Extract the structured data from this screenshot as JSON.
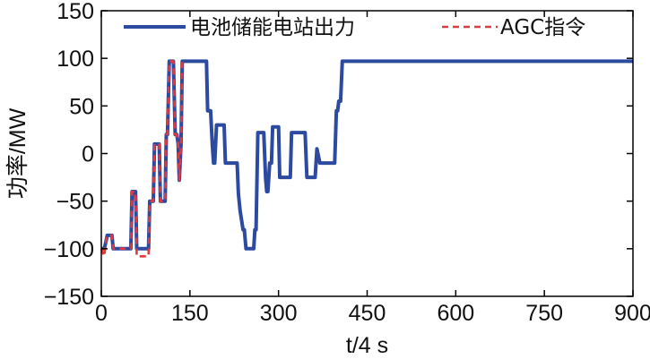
{
  "chart_data": {
    "type": "line",
    "xlabel": "t/4 s",
    "ylabel": "功率/MW",
    "xlim": [
      0,
      900
    ],
    "ylim": [
      -150,
      150
    ],
    "xticks": [
      0,
      150,
      300,
      450,
      600,
      750,
      900
    ],
    "yticks": [
      150,
      100,
      50,
      0,
      -50,
      -100,
      -150
    ],
    "grid": false,
    "legend_position": "top",
    "series": [
      {
        "name": "电池储能电站出力",
        "color": "#2b4aa0",
        "style": "solid",
        "x": [
          0,
          5,
          8,
          10,
          12,
          18,
          20,
          45,
          48,
          50,
          52,
          58,
          60,
          75,
          78,
          80,
          82,
          88,
          90,
          93,
          95,
          98,
          100,
          102,
          105,
          108,
          110,
          112,
          115,
          118,
          120,
          122,
          125,
          128,
          130,
          132,
          135,
          137,
          140,
          142,
          145,
          148,
          150,
          152,
          155,
          158,
          160,
          162,
          170,
          172,
          175,
          178,
          180,
          185,
          188,
          190,
          192,
          195,
          198,
          200,
          202,
          205,
          208,
          210,
          215,
          220,
          222,
          225,
          228,
          230,
          232,
          235,
          240,
          242,
          245,
          248,
          250,
          252,
          255,
          258,
          260,
          262,
          265,
          268,
          270,
          275,
          278,
          280,
          282,
          285,
          288,
          290,
          292,
          295,
          298,
          300,
          302,
          305,
          310,
          312,
          315,
          318,
          320,
          322,
          325,
          328,
          330,
          332,
          335,
          338,
          340,
          342,
          345,
          348,
          350,
          352,
          355,
          358,
          360,
          362,
          365,
          370,
          372,
          375,
          378,
          380,
          382,
          385,
          388,
          390,
          392,
          395,
          398,
          400,
          402,
          405,
          408,
          410,
          412,
          415,
          418,
          420,
          422,
          425,
          428,
          430,
          432,
          435,
          438,
          440,
          442,
          445,
          448,
          450,
          452,
          455,
          458,
          460,
          462,
          465,
          468,
          470,
          472,
          475,
          478,
          480,
          482,
          485,
          488,
          490,
          492,
          495,
          498,
          500,
          502,
          505,
          508,
          510,
          512,
          515,
          518,
          520,
          522,
          525,
          528,
          530,
          532,
          535,
          538,
          540,
          542,
          545,
          548,
          550,
          552,
          555,
          558,
          560,
          562,
          565,
          568,
          570,
          572,
          575,
          578,
          580,
          582,
          585,
          588,
          590,
          592,
          595,
          598,
          600,
          602,
          605,
          608,
          610,
          612,
          615,
          618,
          620,
          622,
          625,
          628,
          630,
          632,
          635,
          638,
          640,
          642,
          645,
          648,
          650,
          652,
          655,
          658,
          660,
          662,
          665,
          668,
          670,
          672,
          675,
          678,
          680,
          682,
          685,
          688,
          690,
          692,
          695,
          698,
          700,
          702,
          705,
          708,
          710,
          712,
          715,
          718,
          720,
          722,
          725,
          728,
          730,
          732,
          735,
          738,
          740,
          742,
          745,
          748,
          750,
          752,
          755,
          758,
          760,
          762,
          765,
          768,
          770,
          772,
          775,
          778,
          780,
          782,
          785,
          788,
          790,
          792,
          795,
          798,
          800,
          802,
          805,
          808,
          810,
          812,
          815,
          818,
          820,
          822,
          825,
          828,
          830,
          832,
          835,
          838,
          840,
          842,
          845,
          848,
          850,
          852,
          855,
          858,
          860,
          862,
          865,
          868,
          870,
          872,
          875,
          878,
          880,
          882,
          885,
          888,
          890,
          892,
          895,
          898,
          900
        ],
        "y": [
          -100,
          -100,
          -92,
          -86,
          -86,
          -86,
          -100,
          -100,
          -100,
          -100,
          -40,
          -40,
          -100,
          -100,
          -100,
          -100,
          -50,
          -50,
          10,
          10,
          10,
          10,
          -50,
          -50,
          -50,
          -50,
          20,
          20,
          97,
          97,
          97,
          97,
          20,
          20,
          10,
          -28,
          10,
          97,
          97,
          97,
          97,
          97,
          97,
          97,
          97,
          97,
          97,
          97,
          97,
          97,
          97,
          97,
          45,
          45,
          8,
          -10,
          -10,
          30,
          30,
          30,
          30,
          30,
          30,
          -10,
          -10,
          -10,
          -10,
          -10,
          -10,
          -10,
          -42,
          -60,
          -80,
          -80,
          -100,
          -100,
          -100,
          -100,
          -100,
          -100,
          -80,
          -80,
          22,
          22,
          22,
          22,
          -25,
          -40,
          -40,
          -10,
          -10,
          28,
          28,
          28,
          28,
          28,
          -25,
          -25,
          -25,
          -25,
          -25,
          -25,
          -25,
          22,
          22,
          22,
          22,
          22,
          22,
          22,
          22,
          22,
          22,
          -25,
          -25,
          -25,
          -25,
          -25,
          -25,
          -25,
          5,
          -10,
          -10,
          -10,
          -10,
          -10,
          -10,
          -10,
          -10,
          -10,
          -10,
          -10,
          45,
          45,
          55,
          55,
          97,
          97,
          97,
          97,
          97,
          97,
          97,
          97,
          97,
          97,
          97,
          97,
          97,
          97,
          97,
          97,
          97,
          97,
          97,
          97,
          97,
          97,
          97,
          97,
          97,
          97,
          97,
          97,
          97,
          97,
          97,
          97,
          97,
          97,
          97,
          97,
          97,
          97,
          97,
          97,
          97,
          97,
          97,
          97,
          97,
          97,
          97,
          97,
          97,
          97,
          97,
          97,
          97,
          97,
          97,
          97,
          97,
          97,
          97,
          97,
          97,
          97,
          97,
          97,
          97,
          97,
          97,
          97,
          97,
          97,
          97,
          97,
          97,
          97,
          97,
          97,
          97,
          97,
          97,
          97,
          97,
          97,
          97,
          97,
          97,
          97,
          97,
          97,
          97,
          97,
          97,
          97,
          97,
          97,
          97,
          97,
          97,
          97,
          97,
          97,
          97,
          97,
          97,
          97,
          97,
          97,
          97,
          97,
          97,
          97,
          97,
          97,
          97,
          97,
          97,
          97,
          97,
          97,
          97,
          97,
          97,
          97,
          97,
          97,
          97,
          97,
          97,
          97,
          97,
          97,
          97,
          97,
          97,
          97,
          97,
          97,
          97,
          97,
          97,
          97,
          97,
          97,
          97,
          97,
          97,
          97,
          97,
          97,
          97,
          97,
          97,
          97,
          97,
          97,
          97,
          97,
          97,
          97,
          97,
          97,
          97,
          97,
          97,
          97,
          97,
          97,
          97,
          97,
          97,
          97,
          97,
          97,
          97,
          97,
          97,
          97,
          97,
          97,
          97,
          97,
          97,
          97,
          97,
          97,
          97,
          97,
          97,
          97,
          97,
          97,
          97,
          97,
          97,
          97,
          97,
          97,
          97,
          97
        ]
      },
      {
        "name": "AGC指令",
        "color": "#e03a3e",
        "style": "dashed",
        "x": [
          0,
          5,
          8,
          10,
          12,
          18,
          20,
          45,
          48,
          50,
          52,
          58,
          60,
          75,
          78,
          80,
          82,
          88,
          90,
          93,
          95,
          98,
          100,
          102,
          105,
          108,
          110,
          112,
          115,
          118,
          120,
          122,
          125,
          128,
          130,
          132,
          135,
          137,
          140
        ],
        "y": [
          -100,
          -108,
          -92,
          -86,
          -86,
          -86,
          -100,
          -100,
          -100,
          -100,
          -40,
          -40,
          -108,
          -108,
          -108,
          -108,
          -50,
          -50,
          10,
          10,
          10,
          10,
          -50,
          -50,
          -50,
          -50,
          20,
          20,
          97,
          97,
          97,
          97,
          20,
          20,
          10,
          -28,
          10,
          97,
          97
        ]
      }
    ]
  }
}
